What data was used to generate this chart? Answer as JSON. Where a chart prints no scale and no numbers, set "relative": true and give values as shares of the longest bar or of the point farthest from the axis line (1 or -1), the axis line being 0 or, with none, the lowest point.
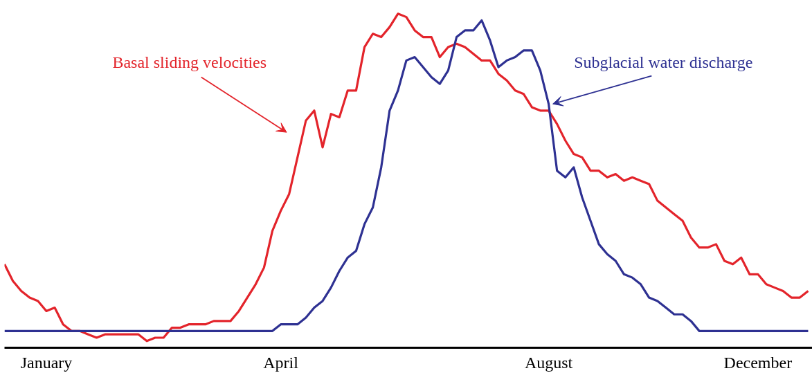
{
  "chart_data": {
    "type": "line",
    "relative": true,
    "line_style": "solid",
    "categories": [
      null,
      null,
      null,
      null,
      null,
      "January",
      null,
      null,
      null,
      null,
      null,
      null,
      null,
      null,
      null,
      null,
      null,
      null,
      null,
      null,
      null,
      null,
      null,
      null,
      null,
      null,
      null,
      null,
      null,
      null,
      null,
      null,
      null,
      "April",
      null,
      null,
      null,
      null,
      null,
      null,
      null,
      null,
      null,
      null,
      null,
      null,
      null,
      null,
      null,
      null,
      null,
      null,
      null,
      null,
      null,
      null,
      null,
      null,
      null,
      null,
      null,
      null,
      null,
      null,
      null,
      "August",
      null,
      null,
      null,
      null,
      null,
      null,
      null,
      null,
      null,
      null,
      null,
      null,
      null,
      null,
      null,
      null,
      null,
      null,
      null,
      null,
      null,
      null,
      null,
      null,
      "December",
      null,
      null,
      null,
      null,
      null,
      null
    ],
    "series": [
      {
        "color": "#e3242b",
        "values": [
          0.25,
          0.2,
          0.17,
          0.15,
          0.14,
          0.11,
          0.12,
          0.07,
          0.05,
          0.05,
          0.04,
          0.03,
          0.04,
          0.04,
          0.04,
          0.04,
          0.04,
          0.02,
          0.03,
          0.03,
          0.06,
          0.06,
          0.07,
          0.07,
          0.07,
          0.08,
          0.08,
          0.08,
          0.11,
          0.15,
          0.19,
          0.24,
          0.35,
          0.41,
          0.46,
          0.57,
          0.68,
          0.71,
          0.6,
          0.7,
          0.69,
          0.77,
          0.77,
          0.9,
          0.94,
          0.93,
          0.96,
          1.0,
          0.99,
          0.95,
          0.93,
          0.93,
          0.87,
          0.9,
          0.91,
          0.9,
          0.88,
          0.86,
          0.86,
          0.82,
          0.8,
          0.77,
          0.76,
          0.72,
          0.71,
          0.71,
          0.67,
          0.62,
          0.58,
          0.57,
          0.53,
          0.53,
          0.51,
          0.52,
          0.5,
          0.51,
          0.5,
          0.49,
          0.44,
          0.42,
          0.4,
          0.38,
          0.33,
          0.3,
          0.3,
          0.31,
          0.26,
          0.25,
          0.27,
          0.22,
          0.22,
          0.19,
          0.18,
          0.17,
          0.15,
          0.15,
          0.17
        ]
      },
      {
        "color": "#2e3192",
        "values": [
          0.05,
          0.05,
          0.05,
          0.05,
          0.05,
          0.05,
          0.05,
          0.05,
          0.05,
          0.05,
          0.05,
          0.05,
          0.05,
          0.05,
          0.05,
          0.05,
          0.05,
          0.05,
          0.05,
          0.05,
          0.05,
          0.05,
          0.05,
          0.05,
          0.05,
          0.05,
          0.05,
          0.05,
          0.05,
          0.05,
          0.05,
          0.05,
          0.05,
          0.07,
          0.07,
          0.07,
          0.09,
          0.12,
          0.14,
          0.18,
          0.23,
          0.27,
          0.29,
          0.37,
          0.42,
          0.54,
          0.71,
          0.77,
          0.86,
          0.87,
          0.84,
          0.81,
          0.79,
          0.83,
          0.93,
          0.95,
          0.95,
          0.98,
          0.92,
          0.84,
          0.86,
          0.87,
          0.89,
          0.89,
          0.83,
          0.73,
          0.53,
          0.51,
          0.54,
          0.45,
          0.38,
          0.31,
          0.28,
          0.26,
          0.22,
          0.21,
          0.19,
          0.15,
          0.14,
          0.12,
          0.1,
          0.1,
          0.08,
          0.05,
          0.05,
          0.05,
          0.05,
          0.05,
          0.05,
          0.05,
          0.05,
          0.05,
          0.05,
          0.05,
          0.05,
          0.05,
          0.05
        ]
      }
    ],
    "annotations": [
      "Basal sliding velocities",
      "Subglacial water discharge"
    ]
  }
}
